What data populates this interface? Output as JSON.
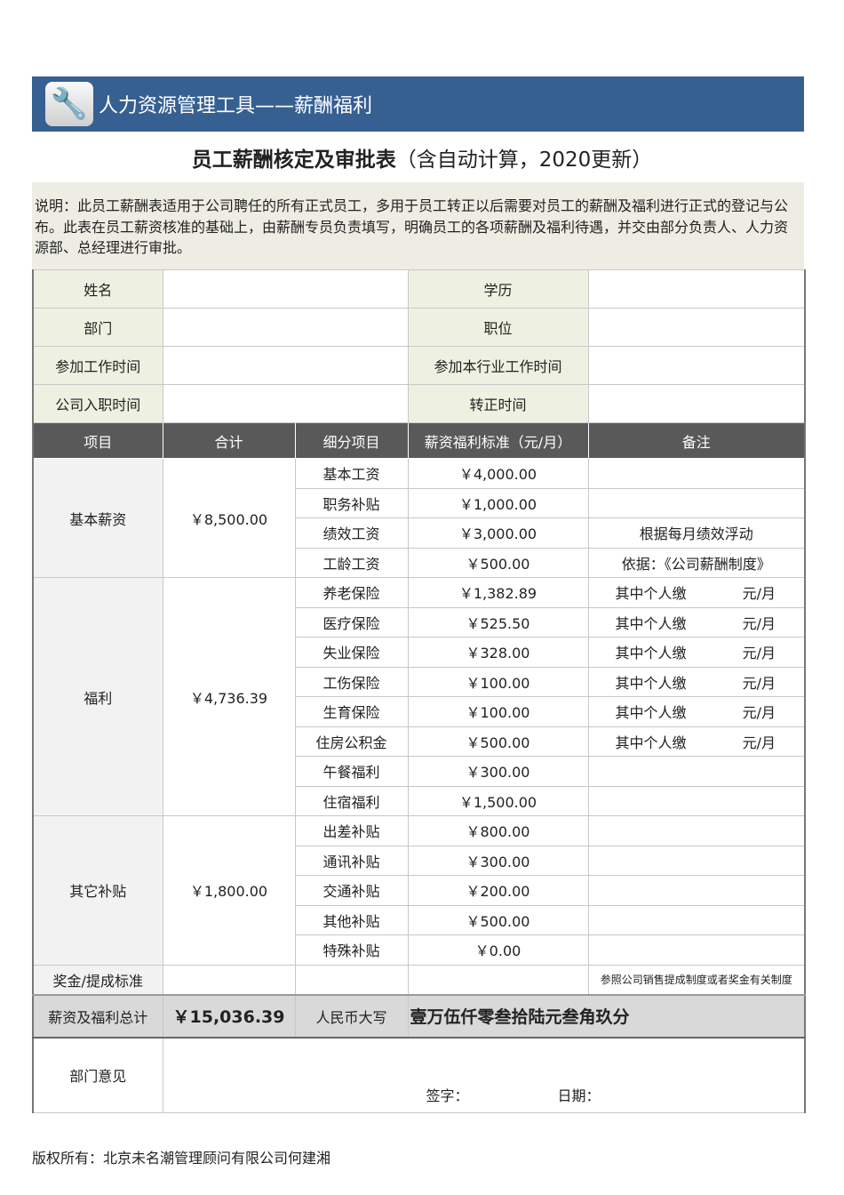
{
  "banner": {
    "title": "人力资源管理工具——薪酬福利",
    "icon": "wrench-icon"
  },
  "title": {
    "main": "员工薪酬核定及审批表",
    "sub": "（含自动计算，2020更新）"
  },
  "description": "说明：此员工薪酬表适用于公司聘任的所有正式员工，多用于员工转正以后需要对员工的薪酬及福利进行正式的登记与公布。此表在员工薪资核准的基础上，由薪酬专员负责填写，明确员工的各项薪酬及福利待遇，并交由部分负责人、人力资源部、总经理进行审批。",
  "info": [
    {
      "l1": "姓名",
      "v1": "",
      "l2": "学历",
      "v2": ""
    },
    {
      "l1": "部门",
      "v1": "",
      "l2": "职位",
      "v2": ""
    },
    {
      "l1": "参加工作时间",
      "v1": "",
      "l2": "参加本行业工作时间",
      "v2": ""
    },
    {
      "l1": "公司入职时间",
      "v1": "",
      "l2": "转正时间",
      "v2": ""
    }
  ],
  "headers": [
    "项目",
    "合计",
    "细分项目",
    "薪资福利标准（元/月）",
    "备注"
  ],
  "groups": [
    {
      "name": "基本薪资",
      "total": "￥8,500.00",
      "items": [
        {
          "item": "基本工资",
          "std": "￥4,000.00",
          "note": ""
        },
        {
          "item": "职务补贴",
          "std": "￥1,000.00",
          "note": ""
        },
        {
          "item": "绩效工资",
          "std": "￥3,000.00",
          "note": "根据每月绩效浮动"
        },
        {
          "item": "工龄工资",
          "std": "￥500.00",
          "note": "依据：《公司薪酬制度》"
        }
      ]
    },
    {
      "name": "福利",
      "total": "￥4,736.39",
      "items": [
        {
          "item": "养老保险",
          "std": "￥1,382.89",
          "a": "其中个人缴",
          "b": "元/月"
        },
        {
          "item": "医疗保险",
          "std": "￥525.50",
          "a": "其中个人缴",
          "b": "元/月"
        },
        {
          "item": "失业保险",
          "std": "￥328.00",
          "a": "其中个人缴",
          "b": "元/月"
        },
        {
          "item": "工伤保险",
          "std": "￥100.00",
          "a": "其中个人缴",
          "b": "元/月"
        },
        {
          "item": "生育保险",
          "std": "￥100.00",
          "a": "其中个人缴",
          "b": "元/月"
        },
        {
          "item": "住房公积金",
          "std": "￥500.00",
          "a": "其中个人缴",
          "b": "元/月"
        },
        {
          "item": "午餐福利",
          "std": "￥300.00",
          "note": ""
        },
        {
          "item": "住宿福利",
          "std": "￥1,500.00",
          "note": ""
        }
      ]
    },
    {
      "name": "其它补贴",
      "total": "￥1,800.00",
      "items": [
        {
          "item": "出差补贴",
          "std": "￥800.00",
          "note": ""
        },
        {
          "item": "通讯补贴",
          "std": "￥300.00",
          "note": ""
        },
        {
          "item": "交通补贴",
          "std": "￥200.00",
          "note": ""
        },
        {
          "item": "其他补贴",
          "std": "￥500.00",
          "note": ""
        },
        {
          "item": "特殊补贴",
          "std": "￥0.00",
          "note": ""
        }
      ]
    }
  ],
  "bonus": {
    "label": "奖金/提成标准",
    "note": "参照公司销售提成制度或者奖金有关制度"
  },
  "total": {
    "label": "薪资及福利总计",
    "value": "￥15,036.39",
    "rmb_label": "人民币大写",
    "rmb": "壹万伍仟零叁拾陆元叁角玖分"
  },
  "opinion": {
    "label": "部门意见",
    "sign": "签字：",
    "date": "日期："
  },
  "footer": "版权所有：北京未名潮管理顾问有限公司何建湘"
}
